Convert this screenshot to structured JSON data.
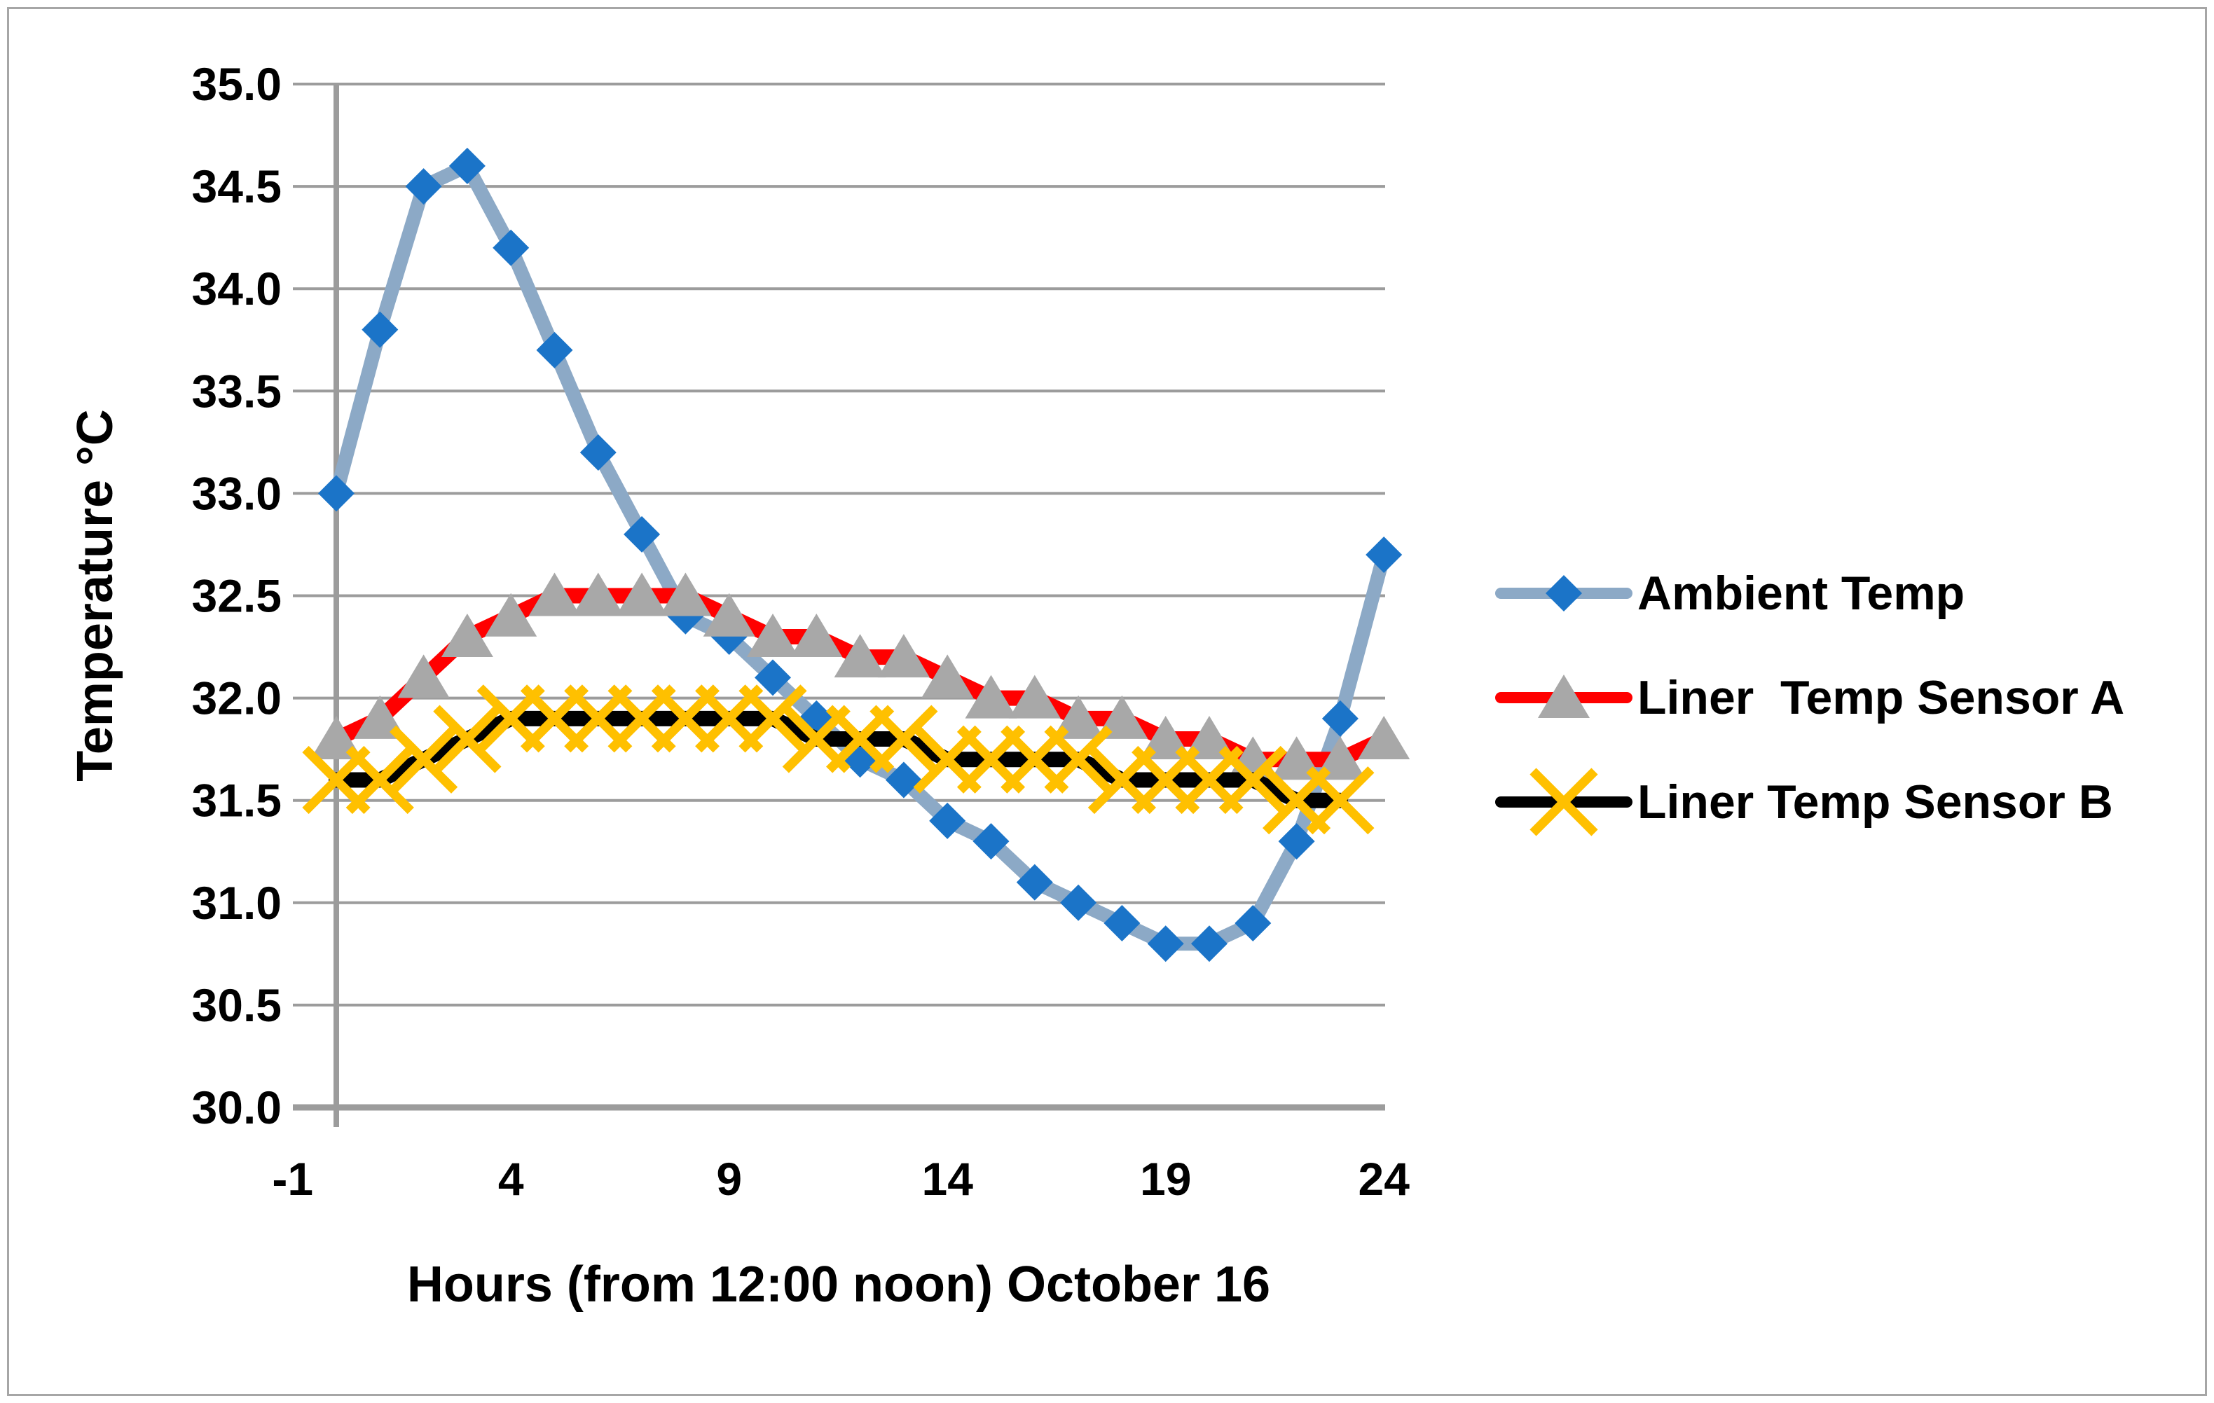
{
  "chart_data": {
    "type": "line",
    "title": "",
    "x": {
      "label": "Hours (from 12:00 noon) October 16",
      "ticks": [
        -1,
        4,
        9,
        14,
        19,
        24
      ],
      "range": [
        -1,
        24
      ]
    },
    "y": {
      "label": "Temperature  °C",
      "tick_labels": [
        "30.0",
        "30.5",
        "31.0",
        "31.5",
        "32.0",
        "32.5",
        "33.0",
        "33.5",
        "34.0",
        "34.5",
        "35.0"
      ],
      "range": [
        30.0,
        35.0
      ]
    },
    "grid": true,
    "legend_position": "right",
    "series": [
      {
        "name": "Ambient Temp",
        "marker": "diamond",
        "line_color": "#8CA9C6",
        "marker_color": "#1B74C8",
        "hours_start": 0,
        "values": [
          33.0,
          33.8,
          34.5,
          34.6,
          34.2,
          33.7,
          33.2,
          32.8,
          32.4,
          32.3,
          32.1,
          31.9,
          31.7,
          31.6,
          31.4,
          31.3,
          31.1,
          31.0,
          30.9,
          30.8,
          30.8,
          30.9,
          31.3,
          31.9,
          32.7
        ]
      },
      {
        "name": "Liner  Temp Sensor A",
        "marker": "triangle",
        "line_color": "#FF0000",
        "marker_color": "#A8A8A8",
        "hours_start": 0,
        "values": [
          31.8,
          31.9,
          32.1,
          32.3,
          32.4,
          32.5,
          32.5,
          32.5,
          32.5,
          32.4,
          32.3,
          32.3,
          32.2,
          32.2,
          32.1,
          32.0,
          32.0,
          31.9,
          31.9,
          31.8,
          31.8,
          31.7,
          31.7,
          31.7,
          31.8
        ]
      },
      {
        "name": "Liner Temp Sensor B",
        "marker": "x",
        "line_color": "#000000",
        "marker_color": "#FFC000",
        "hours_start": 0,
        "values": [
          31.6,
          31.6,
          31.7,
          31.8,
          31.9,
          31.9,
          31.9,
          31.9,
          31.9,
          31.9,
          31.9,
          31.8,
          31.8,
          31.8,
          31.7,
          31.7,
          31.7,
          31.7,
          31.6,
          31.6,
          31.6,
          31.6,
          31.5,
          31.5
        ]
      }
    ]
  },
  "colors": {
    "gridline": "#9C9C9C",
    "axis_line": "#9C9C9C",
    "border": "#A6A6A6",
    "text": "#000000",
    "background": "#FFFFFF"
  }
}
